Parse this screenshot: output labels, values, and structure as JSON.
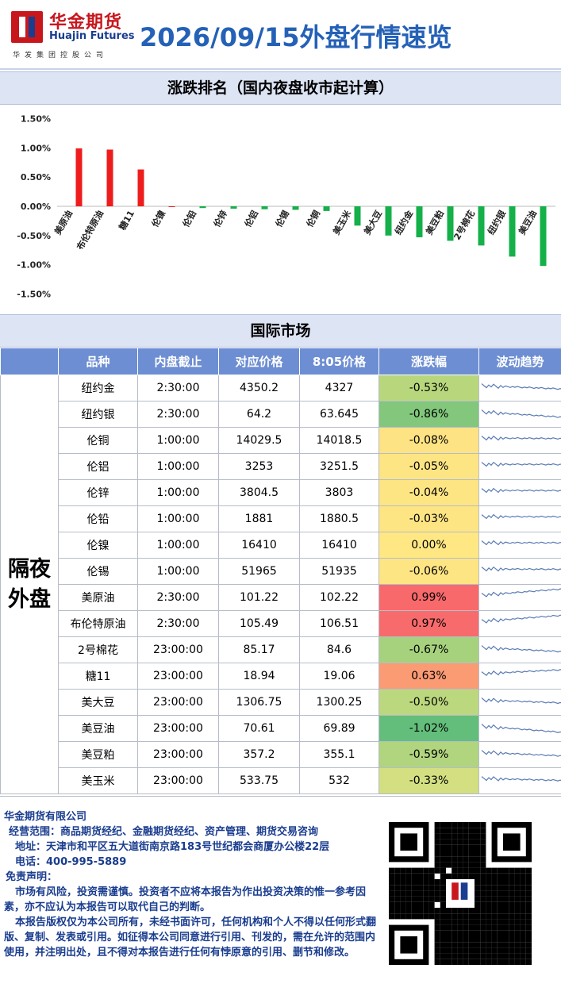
{
  "header": {
    "brand_cn": "华金期货",
    "brand_en": "Huajin Futures",
    "brand_sub": "华发集团控股公司",
    "title": "2026/09/15外盘行情速览"
  },
  "ranking": {
    "title": "涨跌排名（国内夜盘收市起计算）"
  },
  "chart_data": {
    "type": "bar",
    "title": "涨跌排名（国内夜盘收市起计算）",
    "categories": [
      "美原油",
      "布伦特原油",
      "糖11",
      "伦镍",
      "伦铅",
      "伦锌",
      "伦铝",
      "伦锡",
      "伦铜",
      "美玉米",
      "美大豆",
      "纽约金",
      "美豆粕",
      "2号棉花",
      "纽约银",
      "美豆油"
    ],
    "values": [
      0.99,
      0.97,
      0.63,
      0.0,
      -0.03,
      -0.04,
      -0.05,
      -0.06,
      -0.08,
      -0.33,
      -0.5,
      -0.53,
      -0.59,
      -0.67,
      -0.86,
      -1.02
    ],
    "yticks": [
      "1.50%",
      "1.00%",
      "0.50%",
      "0.00%",
      "-0.50%",
      "-1.00%",
      "-1.50%"
    ],
    "ylim": [
      -1.5,
      1.5
    ],
    "up_color": "#ee1c1c",
    "down_color": "#15b04a"
  },
  "market": {
    "title": "国际市场",
    "section": "隔夜外盘",
    "headers": [
      "品种",
      "内盘截止",
      "对应价格",
      "8:05价格",
      "涨跌幅",
      "波动趋势"
    ],
    "rows": [
      {
        "name": "纽约金",
        "cut": "2:30:00",
        "ref": "4350.2",
        "price": "4327",
        "chg": "-0.53%",
        "color": "#b8d77d"
      },
      {
        "name": "纽约银",
        "cut": "2:30:00",
        "ref": "64.2",
        "price": "63.645",
        "chg": "-0.86%",
        "color": "#82c77c"
      },
      {
        "name": "伦铜",
        "cut": "1:00:00",
        "ref": "14029.5",
        "price": "14018.5",
        "chg": "-0.08%",
        "color": "#fde383"
      },
      {
        "name": "伦铝",
        "cut": "1:00:00",
        "ref": "3253",
        "price": "3251.5",
        "chg": "-0.05%",
        "color": "#fee584"
      },
      {
        "name": "伦锌",
        "cut": "1:00:00",
        "ref": "3804.5",
        "price": "3803",
        "chg": "-0.04%",
        "color": "#fee584"
      },
      {
        "name": "伦铅",
        "cut": "1:00:00",
        "ref": "1881",
        "price": "1880.5",
        "chg": "-0.03%",
        "color": "#fee584"
      },
      {
        "name": "伦镍",
        "cut": "1:00:00",
        "ref": "16410",
        "price": "16410",
        "chg": "0.00%",
        "color": "#ffe884"
      },
      {
        "name": "伦锡",
        "cut": "1:00:00",
        "ref": "51965",
        "price": "51935",
        "chg": "-0.06%",
        "color": "#fde584"
      },
      {
        "name": "美原油",
        "cut": "2:30:00",
        "ref": "101.22",
        "price": "102.22",
        "chg": "0.99%",
        "color": "#f8696b"
      },
      {
        "name": "布伦特原油",
        "cut": "2:30:00",
        "ref": "105.49",
        "price": "106.51",
        "chg": "0.97%",
        "color": "#f86b6c"
      },
      {
        "name": "2号棉花",
        "cut": "23:00:00",
        "ref": "85.17",
        "price": "84.6",
        "chg": "-0.67%",
        "color": "#a6d27d"
      },
      {
        "name": "糖11",
        "cut": "23:00:00",
        "ref": "18.94",
        "price": "19.06",
        "chg": "0.63%",
        "color": "#fa9b74"
      },
      {
        "name": "美大豆",
        "cut": "23:00:00",
        "ref": "1306.75",
        "price": "1300.25",
        "chg": "-0.50%",
        "color": "#bcd87e"
      },
      {
        "name": "美豆油",
        "cut": "23:00:00",
        "ref": "70.61",
        "price": "69.89",
        "chg": "-1.02%",
        "color": "#63be7b"
      },
      {
        "name": "美豆粕",
        "cut": "23:00:00",
        "ref": "357.2",
        "price": "355.1",
        "chg": "-0.59%",
        "color": "#b1d47e"
      },
      {
        "name": "美玉米",
        "cut": "23:00:00",
        "ref": "533.75",
        "price": "532",
        "chg": "-0.33%",
        "color": "#d3df81"
      }
    ]
  },
  "footer": {
    "company": "华金期货有限公司",
    "scope": "经营范围：商品期货经纪、金融期货经纪、资产管理、期货交易咨询",
    "address": "地址：天津市和平区五大道街南京路183号世纪都会商厦办公楼22层",
    "phone": "电话：400-995-5889",
    "disclaimer_title": "免责声明：",
    "disclaimer_1": "市场有风险，投资需谨慎。投资者不应将本报告为作出投资决策的惟一参考因素，亦不应认为本报告可以取代自己的判断。",
    "disclaimer_2": "本报告版权仅为本公司所有，未经书面许可，任何机构和个人不得以任何形式翻版、复制、发表或引用。如征得本公司同意进行引用、刊发的，需在允许的范围内使用，并注明出处，且不得对本报告进行任何有悖原意的引用、删节和修改。"
  }
}
